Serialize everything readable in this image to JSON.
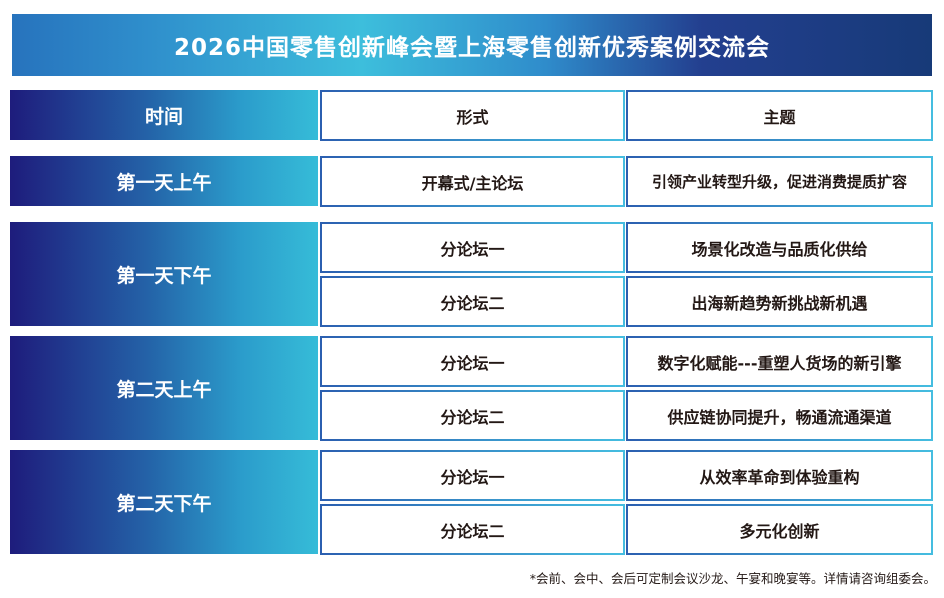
{
  "title": "2026中国零售创新峰会暨上海零售创新优秀案例交流会",
  "header": {
    "time": "时间",
    "format": "形式",
    "topic": "主题"
  },
  "schedule": [
    {
      "time": "第一天上午",
      "sessions": [
        {
          "format": "开幕式/主论坛",
          "topic": "引领产业转型升级，促进消费提质扩容"
        }
      ]
    },
    {
      "time": "第一天下午",
      "sessions": [
        {
          "format": "分论坛一",
          "topic": "场景化改造与品质化供给"
        },
        {
          "format": "分论坛二",
          "topic": "出海新趋势新挑战新机遇"
        }
      ]
    },
    {
      "time": "第二天上午",
      "sessions": [
        {
          "format": "分论坛一",
          "topic": "数字化赋能---重塑人货场的新引擎"
        },
        {
          "format": "分论坛二",
          "topic": "供应链协同提升，畅通流通渠道"
        }
      ]
    },
    {
      "time": "第二天下午",
      "sessions": [
        {
          "format": "分论坛一",
          "topic": "从效率革命到体验重构"
        },
        {
          "format": "分论坛二",
          "topic": "多元化创新"
        }
      ]
    }
  ],
  "footnote": "*会前、会中、会后可定制会议沙龙、午宴和晚宴等。详情请咨询组委会。",
  "colors": {
    "navy": "#1e1c7c",
    "cyan": "#36bcd8",
    "text": "#231815"
  }
}
